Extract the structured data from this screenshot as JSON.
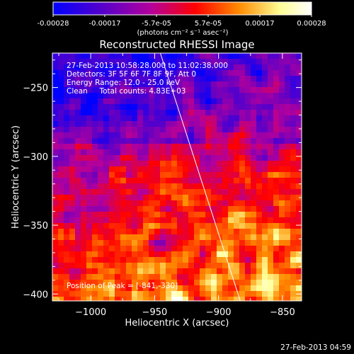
{
  "colorbar": {
    "ticks": [
      "-0.00028",
      "-0.00017",
      "-5.7e-05",
      "5.7e-05",
      "0.00017",
      "0.00028"
    ],
    "unit_label": "(photons cm⁻² s⁻¹ asec⁻²)",
    "range": [
      -0.00028,
      0.00028
    ],
    "colors": [
      "#0000ff",
      "#5a00c8",
      "#b4009b",
      "#ff0000",
      "#ff8c00",
      "#ffff96",
      "#ffffff"
    ]
  },
  "chart_data": {
    "type": "heatmap",
    "title": "Reconstructed RHESSI Image",
    "xlabel": "Heliocentric X (arcsec)",
    "ylabel": "Heliocentric Y (arcsec)",
    "xlim": [
      -1030,
      -835
    ],
    "ylim": [
      -405,
      -225
    ],
    "xticks": [
      -1000,
      -950,
      -900,
      -850
    ],
    "yticks": [
      -250,
      -300,
      -350,
      -400
    ],
    "xtick_labels": [
      "−1000",
      "−950",
      "−900",
      "−850"
    ],
    "ytick_labels": [
      "−250",
      "−300",
      "−350",
      "−400"
    ],
    "limb_line": [
      [
        -948,
        -218
      ],
      [
        -883,
        -405
      ]
    ],
    "peak_position": [
      -841,
      -330
    ],
    "info_lines": [
      "27-Feb-2013 10:58:28.000 to 11:02:38.000",
      "Detectors: 3F 5F 6F 7F 8F 9F, Att 0",
      "Energy Range: 12.0 - 25.0 keV",
      "Clean     Total counts: 4.83E+03"
    ],
    "peak_label": "Position of Peak = [-841,-330]"
  },
  "footer": {
    "timestamp": "27-Feb-2013 04:59"
  }
}
